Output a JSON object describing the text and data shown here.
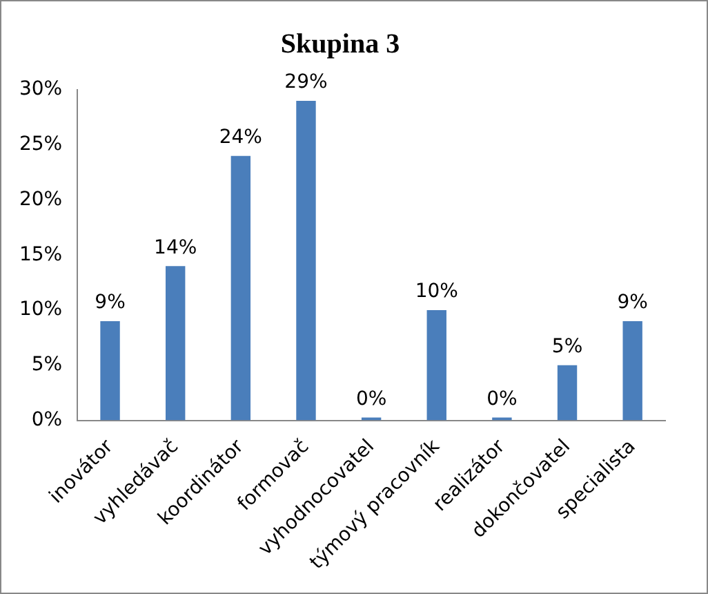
{
  "chart_data": {
    "type": "bar",
    "title": "Skupina 3",
    "categories": [
      "inovátor",
      "vyhledávač",
      "koordinátor",
      "formovač",
      "vyhodnocovatel",
      "týmový pracovník",
      "realizátor",
      "dokončovatel",
      "specialista"
    ],
    "values": [
      9,
      14,
      24,
      29,
      0,
      10,
      0,
      5,
      9
    ],
    "value_labels": [
      "9%",
      "14%",
      "24%",
      "29%",
      "0%",
      "10%",
      "0%",
      "5%",
      "9%"
    ],
    "color": "#4a7ebb",
    "ylim": [
      0,
      30
    ],
    "yticks": [
      {
        "value": 0,
        "label": "0%"
      },
      {
        "value": 5,
        "label": "5%"
      },
      {
        "value": 10,
        "label": "10%"
      },
      {
        "value": 15,
        "label": "15%"
      },
      {
        "value": 20,
        "label": "20%"
      },
      {
        "value": 25,
        "label": "25%"
      },
      {
        "value": 30,
        "label": "30%"
      }
    ],
    "grid": false,
    "legend": false
  }
}
